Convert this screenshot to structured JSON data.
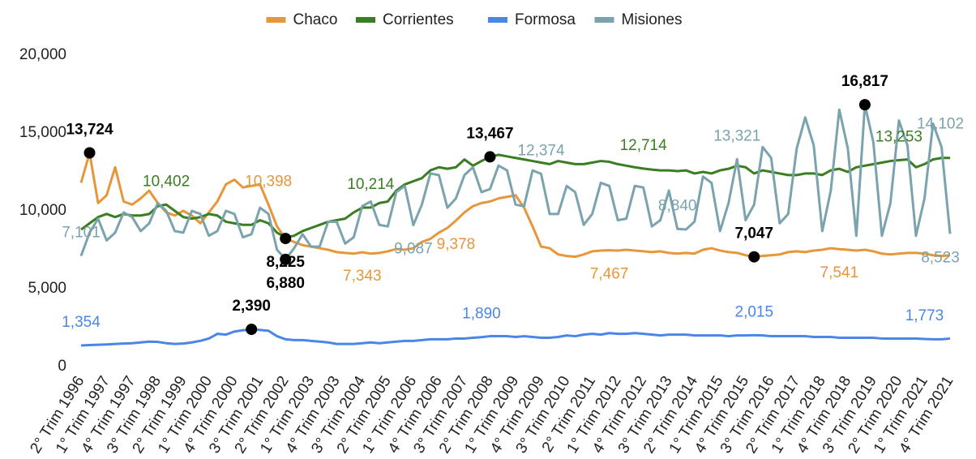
{
  "chart_data": {
    "type": "line",
    "categories": [
      "2° Trim 1996",
      null,
      null,
      "1° Trim 1997",
      null,
      null,
      "4° Trim 1997",
      null,
      null,
      "3° Trim 1998",
      null,
      null,
      "2° Trim 1999",
      null,
      null,
      "1° Trim 2000",
      null,
      null,
      "4° Trim 2000",
      null,
      null,
      "3° Trim 2001",
      null,
      null,
      "2° Trim 2002",
      null,
      null,
      "1° Trim 2003",
      null,
      null,
      "4° Trim 2003",
      null,
      null,
      "3° Trim 2004",
      null,
      null,
      "2° Trim 2005",
      null,
      null,
      "1° Trim 2006",
      null,
      null,
      "4° Trim 2006",
      null,
      null,
      "3° Trim 2007",
      null,
      null,
      "2° Trim 2008",
      null,
      null,
      "1° Trim 2009",
      null,
      null,
      "4° Trim 2009",
      null,
      null,
      "3° Trim 2010",
      null,
      null,
      "2° Trim 2011",
      null,
      null,
      "1° Trim 2012",
      null,
      null,
      "4° Trim 2012",
      null,
      null,
      "3° Trim 2013",
      null,
      null,
      "2° Trim 2014",
      null,
      null,
      "1° Trim 2015",
      null,
      null,
      "4° Trim 2015",
      null,
      null,
      "3° Trim 2016",
      null,
      null,
      "2° Trim 2017",
      null,
      null,
      "1° Trim 2018",
      null,
      null,
      "4° Trim 2018",
      null,
      null,
      "3° Trim 2019",
      null,
      null,
      "2° Trim 2020",
      null,
      null,
      "1° Trim 2021",
      null,
      null,
      "4° Trim 2021"
    ],
    "ylim": [
      0,
      20000
    ],
    "yticks": [
      0,
      {
        "value": 5000,
        "label": "5,000"
      },
      {
        "value": 10000,
        "label": "10,000"
      },
      {
        "value": 15000,
        "label": "15,000"
      },
      {
        "value": 20000,
        "label": "20,000"
      }
    ],
    "legend": "top",
    "series": [
      {
        "name": "Chaco",
        "color": "#e8963a",
        "values": [
          11800,
          13724,
          10500,
          11000,
          12800,
          10600,
          10400,
          10800,
          11300,
          10500,
          9900,
          9700,
          10000,
          9700,
          9200,
          9900,
          10600,
          11700,
          12000,
          11500,
          11600,
          11700,
          10398,
          9000,
          8225,
          8000,
          7800,
          7700,
          7600,
          7500,
          7350,
          7300,
          7250,
          7343,
          7250,
          7300,
          7400,
          7550,
          7500,
          7600,
          8000,
          8200,
          8600,
          8900,
          9378,
          9900,
          10300,
          10500,
          10600,
          10800,
          10900,
          11000,
          10200,
          9000,
          7700,
          7600,
          7200,
          7100,
          7050,
          7200,
          7400,
          7450,
          7467,
          7450,
          7500,
          7450,
          7400,
          7350,
          7400,
          7300,
          7250,
          7300,
          7250,
          7500,
          7600,
          7450,
          7350,
          7300,
          7150,
          7047,
          7100,
          7150,
          7200,
          7350,
          7400,
          7350,
          7450,
          7500,
          7600,
          7541,
          7500,
          7450,
          7500,
          7400,
          7250,
          7200,
          7250,
          7300,
          7300,
          7250,
          7150,
          7100,
          7150
        ],
        "value_labels": {
          "1": "13,724",
          "22": "10,398",
          "24": "8,225",
          "33": "7,343",
          "44": "9,378",
          "62": "7,467",
          "79": "7,047",
          "89": "7,541"
        },
        "highlight": [
          1,
          24,
          79
        ]
      },
      {
        "name": "Corrientes",
        "color": "#3a7d22",
        "values": [
          8800,
          9200,
          9600,
          9800,
          9600,
          9800,
          9700,
          9700,
          9800,
          10300,
          10402,
          10000,
          9600,
          9500,
          9600,
          9800,
          9700,
          9300,
          9200,
          9100,
          9100,
          9400,
          9200,
          8600,
          8300,
          8400,
          8700,
          8900,
          9100,
          9300,
          9400,
          9500,
          9900,
          10200,
          10214,
          10500,
          10600,
          11300,
          11700,
          11900,
          12100,
          12600,
          12800,
          12700,
          12800,
          13300,
          12900,
          13200,
          13467,
          13600,
          13500,
          13400,
          13300,
          13200,
          13100,
          13000,
          13200,
          13100,
          13000,
          13000,
          13100,
          13200,
          13150,
          13000,
          12900,
          12800,
          12714,
          12650,
          12600,
          12600,
          12550,
          12600,
          12400,
          12500,
          12400,
          12600,
          12700,
          12900,
          12800,
          12400,
          12600,
          12500,
          12400,
          12300,
          12300,
          12400,
          12400,
          12300,
          12600,
          12700,
          12500,
          12800,
          12900,
          13000,
          13100,
          13200,
          13253,
          13300,
          12800,
          13000,
          13300,
          13400,
          13400
        ],
        "value_labels": {
          "10": "10,402",
          "34": "10,214",
          "48": "13,467",
          "66": "12,714",
          "96": "13,253"
        },
        "highlight": [
          48
        ]
      },
      {
        "name": "Formosa",
        "color": "#4a86e8",
        "values": [
          1354,
          1380,
          1400,
          1420,
          1450,
          1480,
          1500,
          1550,
          1600,
          1580,
          1500,
          1450,
          1480,
          1550,
          1650,
          1800,
          2100,
          2050,
          2250,
          2330,
          2390,
          2350,
          2300,
          1950,
          1750,
          1700,
          1700,
          1650,
          1600,
          1550,
          1450,
          1450,
          1450,
          1500,
          1550,
          1500,
          1550,
          1600,
          1650,
          1650,
          1700,
          1750,
          1750,
          1750,
          1800,
          1800,
          1850,
          1890,
          1950,
          1950,
          1950,
          1900,
          1950,
          1900,
          1850,
          1850,
          1900,
          2000,
          1950,
          2050,
          2100,
          2050,
          2150,
          2100,
          2100,
          2150,
          2100,
          2050,
          2000,
          2050,
          2050,
          2050,
          2000,
          2000,
          2000,
          2000,
          1950,
          2000,
          2000,
          2015,
          2000,
          1950,
          1950,
          1950,
          1950,
          1950,
          1900,
          1900,
          1900,
          1850,
          1850,
          1850,
          1850,
          1850,
          1800,
          1800,
          1800,
          1800,
          1800,
          1773,
          1750,
          1750,
          1800
        ],
        "value_labels": {
          "0": "1,354",
          "20": "2,390",
          "47": "1,890",
          "79": "2,015",
          "99": "1,773"
        },
        "highlight": [
          20
        ]
      },
      {
        "name": "Misiones",
        "color": "#7aa3ad",
        "values": [
          7101,
          8600,
          9500,
          8100,
          8600,
          9900,
          9600,
          8700,
          9200,
          10500,
          10000,
          8700,
          8600,
          10000,
          9800,
          8400,
          8700,
          10000,
          9800,
          8300,
          8500,
          10200,
          9800,
          7500,
          6880,
          7600,
          8500,
          7700,
          7700,
          9300,
          9300,
          7900,
          8300,
          10300,
          10600,
          9100,
          9000,
          11200,
          11600,
          9087,
          10400,
          12400,
          12300,
          10200,
          10800,
          12300,
          12800,
          11200,
          11400,
          12900,
          12600,
          10400,
          10300,
          12600,
          12374,
          9800,
          9800,
          11600,
          11200,
          9100,
          9800,
          11800,
          11600,
          9400,
          9500,
          11600,
          11500,
          9000,
          9400,
          11300,
          8840,
          8800,
          9300,
          12200,
          11800,
          8700,
          10500,
          13321,
          9400,
          10400,
          14100,
          13400,
          9200,
          9800,
          14000,
          16000,
          14200,
          8700,
          11300,
          16500,
          14000,
          8400,
          16817,
          14400,
          8400,
          10500,
          15800,
          14200,
          8400,
          10800,
          15600,
          14102,
          8523
        ],
        "value_labels": {
          "0": "7,101",
          "24": "6,880",
          "39": "9,087",
          "54": "12,374",
          "70": "8,840",
          "77": "13,321",
          "92": "16,817",
          "101": "14,102",
          "102": "8,523"
        },
        "highlight": [
          24,
          92
        ]
      }
    ]
  }
}
